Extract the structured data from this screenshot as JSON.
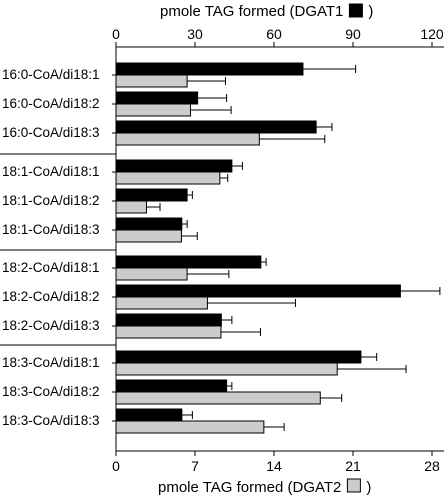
{
  "chart_data": {
    "type": "bar",
    "orientation": "horizontal",
    "top_axis": {
      "title": "pmole TAG formed (DGAT1",
      "legend_swatch_color": "#000000",
      "closing": ")",
      "ticks": [
        0,
        30,
        60,
        90,
        120
      ],
      "tick_labels": [
        "0",
        "30",
        "60",
        "90",
        "120"
      ],
      "range": [
        0,
        120
      ]
    },
    "bottom_axis": {
      "title": "pmole TAG formed (DGAT2",
      "legend_swatch_color": "#cccccc",
      "closing": ")",
      "ticks": [
        0,
        7,
        14,
        21,
        28
      ],
      "tick_labels": [
        "0",
        "7",
        "14",
        "21",
        "28"
      ],
      "range": [
        0,
        28.5
      ]
    },
    "colors": {
      "DGAT1": "#000000",
      "DGAT2": "#cccccc"
    },
    "groups": [
      [
        {
          "label": "16:0-CoA/di18:1",
          "dgat1": 71,
          "dgat1_err": 20,
          "dgat2": 6.3,
          "dgat2_err": 3.4
        },
        {
          "label": "16:0-CoA/di18:2",
          "dgat1": 31,
          "dgat1_err": 11,
          "dgat2": 6.6,
          "dgat2_err": 3.6
        },
        {
          "label": "16:0-CoA/di18:3",
          "dgat1": 76,
          "dgat1_err": 6,
          "dgat2": 12.7,
          "dgat2_err": 5.8
        }
      ],
      [
        {
          "label": "18:1-CoA/di18:1",
          "dgat1": 44,
          "dgat1_err": 4,
          "dgat2": 9.2,
          "dgat2_err": 0.7
        },
        {
          "label": "18:1-CoA/di18:2",
          "dgat1": 27,
          "dgat1_err": 2,
          "dgat2": 2.7,
          "dgat2_err": 1.2
        },
        {
          "label": "18:1-CoA/di18:3",
          "dgat1": 25,
          "dgat1_err": 2,
          "dgat2": 5.8,
          "dgat2_err": 1.4
        }
      ],
      [
        {
          "label": "18:2-CoA/di18:1",
          "dgat1": 55,
          "dgat1_err": 2,
          "dgat2": 6.3,
          "dgat2_err": 3.7
        },
        {
          "label": "18:2-CoA/di18:2",
          "dgat1": 108,
          "dgat1_err": 15,
          "dgat2": 8.1,
          "dgat2_err": 7.8
        },
        {
          "label": "18:2-CoA/di18:3",
          "dgat1": 40,
          "dgat1_err": 4,
          "dgat2": 9.3,
          "dgat2_err": 3.5
        }
      ],
      [
        {
          "label": "18:3-CoA/di18:1",
          "dgat1": 93,
          "dgat1_err": 6,
          "dgat2": 19.6,
          "dgat2_err": 6.1
        },
        {
          "label": "18:3-CoA/di18:2",
          "dgat1": 42,
          "dgat1_err": 2,
          "dgat2": 18.1,
          "dgat2_err": 1.9
        },
        {
          "label": "18:3-CoA/di18:3",
          "dgat1": 25,
          "dgat1_err": 4,
          "dgat2": 13.1,
          "dgat2_err": 1.8
        }
      ]
    ]
  }
}
